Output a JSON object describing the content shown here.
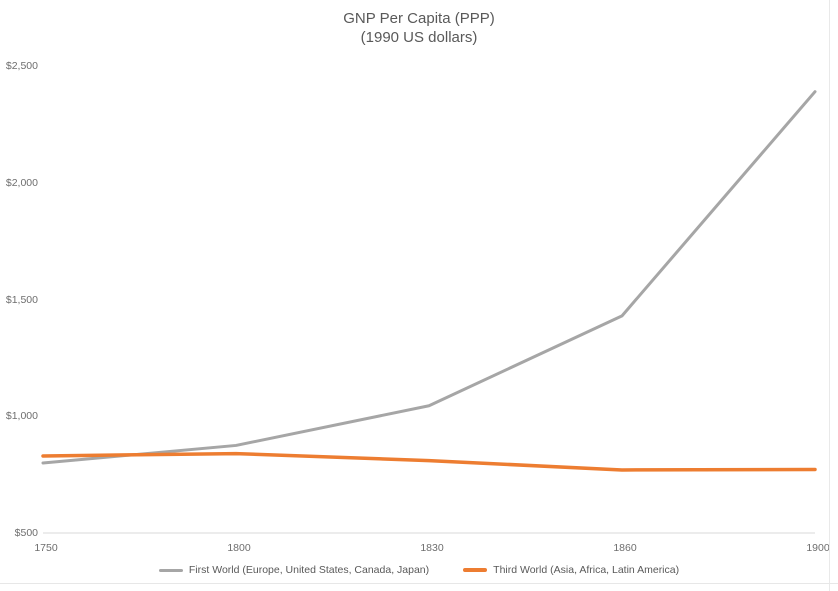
{
  "title": {
    "line1": "GNP Per Capita (PPP)",
    "line2": "(1990 US dollars)"
  },
  "chart_data": {
    "type": "line",
    "title": "GNP Per Capita (PPP)",
    "subtitle": "(1990 US dollars)",
    "categories": [
      1750,
      1800,
      1830,
      1860,
      1900
    ],
    "x_labels": [
      "1750",
      "1800",
      "1830",
      "1860",
      "1900"
    ],
    "series": [
      {
        "name": "First World (Europe, United States, Canada, Japan)",
        "color": "#a6a6a6",
        "values": [
          800,
          875,
          1045,
          1430,
          2390
        ]
      },
      {
        "name": "Third World (Asia, Africa, Latin America)",
        "color": "#ed7d31",
        "values": [
          830,
          840,
          810,
          770,
          772
        ]
      }
    ],
    "ylim": [
      500,
      2500
    ],
    "yticks": [
      500,
      1000,
      1500,
      2000,
      2500
    ],
    "ytick_labels": [
      "$500",
      "$1,000",
      "$1,500",
      "$2,000",
      "$2,500"
    ],
    "grid": false,
    "legend_position": "bottom",
    "axis_color": "#d9d9d9",
    "text_color": "#595959"
  }
}
